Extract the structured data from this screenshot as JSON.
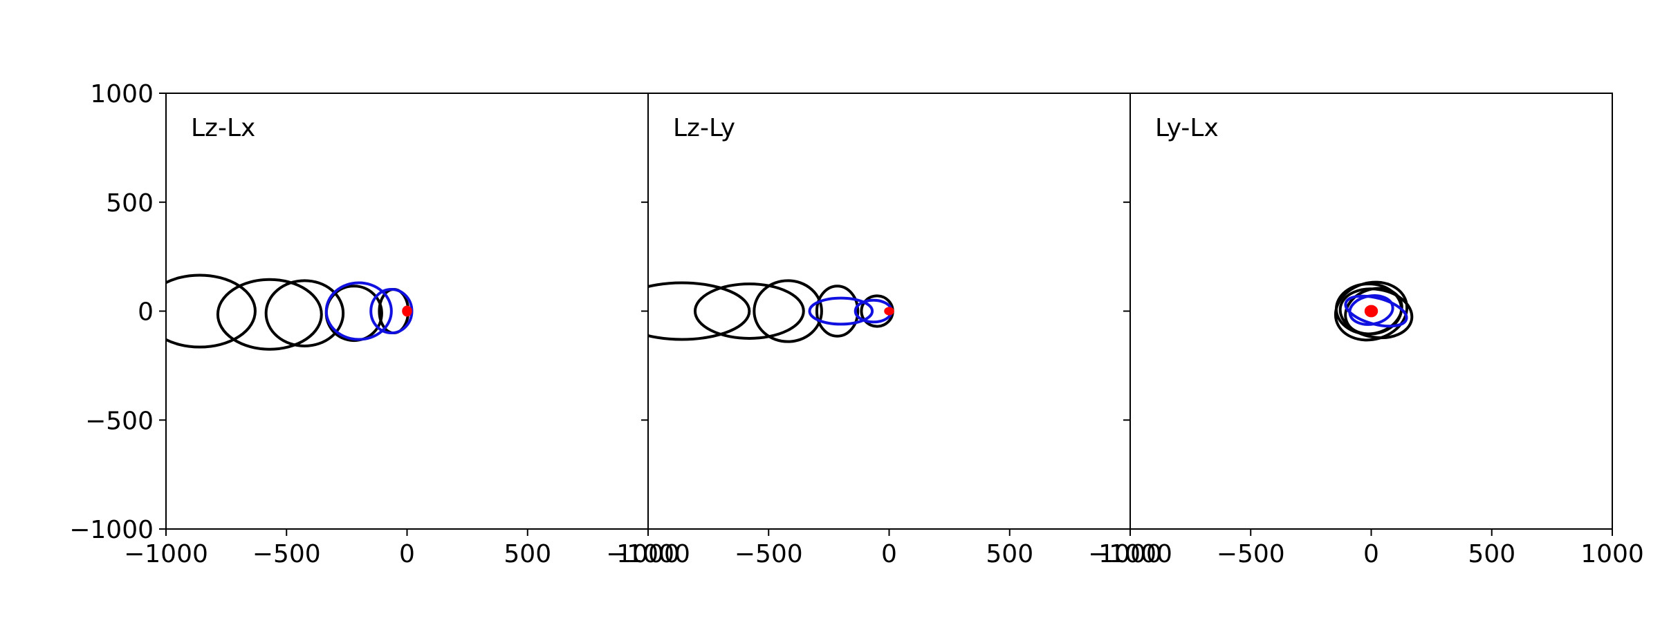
{
  "chart_data": [
    {
      "type": "line",
      "panel_label": "Lz-Lx",
      "xlim": [
        -1000,
        1000
      ],
      "ylim": [
        -1000,
        1000
      ],
      "x_ticks": [
        "−1000",
        "−500",
        "0",
        "500",
        "1000"
      ],
      "y_ticks": [
        "1000",
        "500",
        "0",
        "−500",
        "−1000"
      ],
      "show_y_tick_labels": true,
      "grid": false,
      "series": [
        {
          "color": "#000000",
          "ellipses": [
            {
              "cx": -860,
              "cy": 0,
              "rx": 230,
              "ry": 165,
              "angle": 0
            },
            {
              "cx": -570,
              "cy": -15,
              "rx": 215,
              "ry": 160,
              "angle": 0
            },
            {
              "cx": -425,
              "cy": -10,
              "rx": 160,
              "ry": 150,
              "angle": 0
            },
            {
              "cx": -220,
              "cy": -10,
              "rx": 115,
              "ry": 125,
              "angle": 0
            },
            {
              "cx": -55,
              "cy": 0,
              "rx": 60,
              "ry": 100,
              "angle": 0
            }
          ]
        },
        {
          "color": "#1010e0",
          "ellipses": [
            {
              "cx": -200,
              "cy": 0,
              "rx": 135,
              "ry": 130,
              "angle": 0
            },
            {
              "cx": -65,
              "cy": 0,
              "rx": 85,
              "ry": 100,
              "angle": 0
            }
          ]
        },
        {
          "color": "#ff0000",
          "ellipses": [
            {
              "cx": 0,
              "cy": 0,
              "rx": 18,
              "ry": 22,
              "angle": 0
            }
          ]
        }
      ]
    },
    {
      "type": "line",
      "panel_label": "Lz-Ly",
      "xlim": [
        -1000,
        1000
      ],
      "ylim": [
        -1000,
        1000
      ],
      "x_ticks": [
        "−1000",
        "−500",
        "0",
        "500",
        "1000"
      ],
      "y_ticks": [
        "1000",
        "500",
        "0",
        "−500",
        "−1000"
      ],
      "show_y_tick_labels": false,
      "grid": false,
      "series": [
        {
          "color": "#000000",
          "ellipses": [
            {
              "cx": -860,
              "cy": 0,
              "rx": 280,
              "ry": 130,
              "angle": 0
            },
            {
              "cx": -580,
              "cy": 0,
              "rx": 225,
              "ry": 125,
              "angle": 0
            },
            {
              "cx": -420,
              "cy": 0,
              "rx": 140,
              "ry": 140,
              "angle": 0
            },
            {
              "cx": -215,
              "cy": 0,
              "rx": 85,
              "ry": 115,
              "angle": 0
            },
            {
              "cx": -50,
              "cy": 0,
              "rx": 65,
              "ry": 70,
              "angle": 0
            }
          ]
        },
        {
          "color": "#1010e0",
          "ellipses": [
            {
              "cx": -200,
              "cy": 0,
              "rx": 130,
              "ry": 60,
              "angle": 0
            },
            {
              "cx": -65,
              "cy": 0,
              "rx": 75,
              "ry": 50,
              "angle": 0
            }
          ]
        },
        {
          "color": "#ff0000",
          "ellipses": [
            {
              "cx": 0,
              "cy": 0,
              "rx": 18,
              "ry": 16,
              "angle": 0
            }
          ]
        }
      ]
    },
    {
      "type": "line",
      "panel_label": "Ly-Lx",
      "xlim": [
        -1000,
        1000
      ],
      "ylim": [
        -1000,
        1000
      ],
      "x_ticks": [
        "−1000",
        "−500",
        "0",
        "500",
        "1000"
      ],
      "y_ticks": [
        "1000",
        "500",
        "0",
        "−500",
        "−1000"
      ],
      "show_y_tick_labels": false,
      "grid": false,
      "series": [
        {
          "color": "#000000",
          "ellipses": [
            {
              "cx": 0,
              "cy": 0,
              "rx": 150,
              "ry": 130,
              "angle": 15
            },
            {
              "cx": 20,
              "cy": -10,
              "rx": 150,
              "ry": 110,
              "angle": -10
            },
            {
              "cx": -10,
              "cy": 10,
              "rx": 135,
              "ry": 115,
              "angle": 0
            },
            {
              "cx": 10,
              "cy": 0,
              "rx": 120,
              "ry": 100,
              "angle": 20
            }
          ]
        },
        {
          "color": "#1010e0",
          "ellipses": [
            {
              "cx": 20,
              "cy": 0,
              "rx": 130,
              "ry": 60,
              "angle": -15
            },
            {
              "cx": 0,
              "cy": 5,
              "rx": 90,
              "ry": 65,
              "angle": 10
            }
          ]
        },
        {
          "color": "#ff0000",
          "ellipses": [
            {
              "cx": 0,
              "cy": 0,
              "rx": 25,
              "ry": 25,
              "angle": 0
            }
          ]
        }
      ]
    }
  ]
}
